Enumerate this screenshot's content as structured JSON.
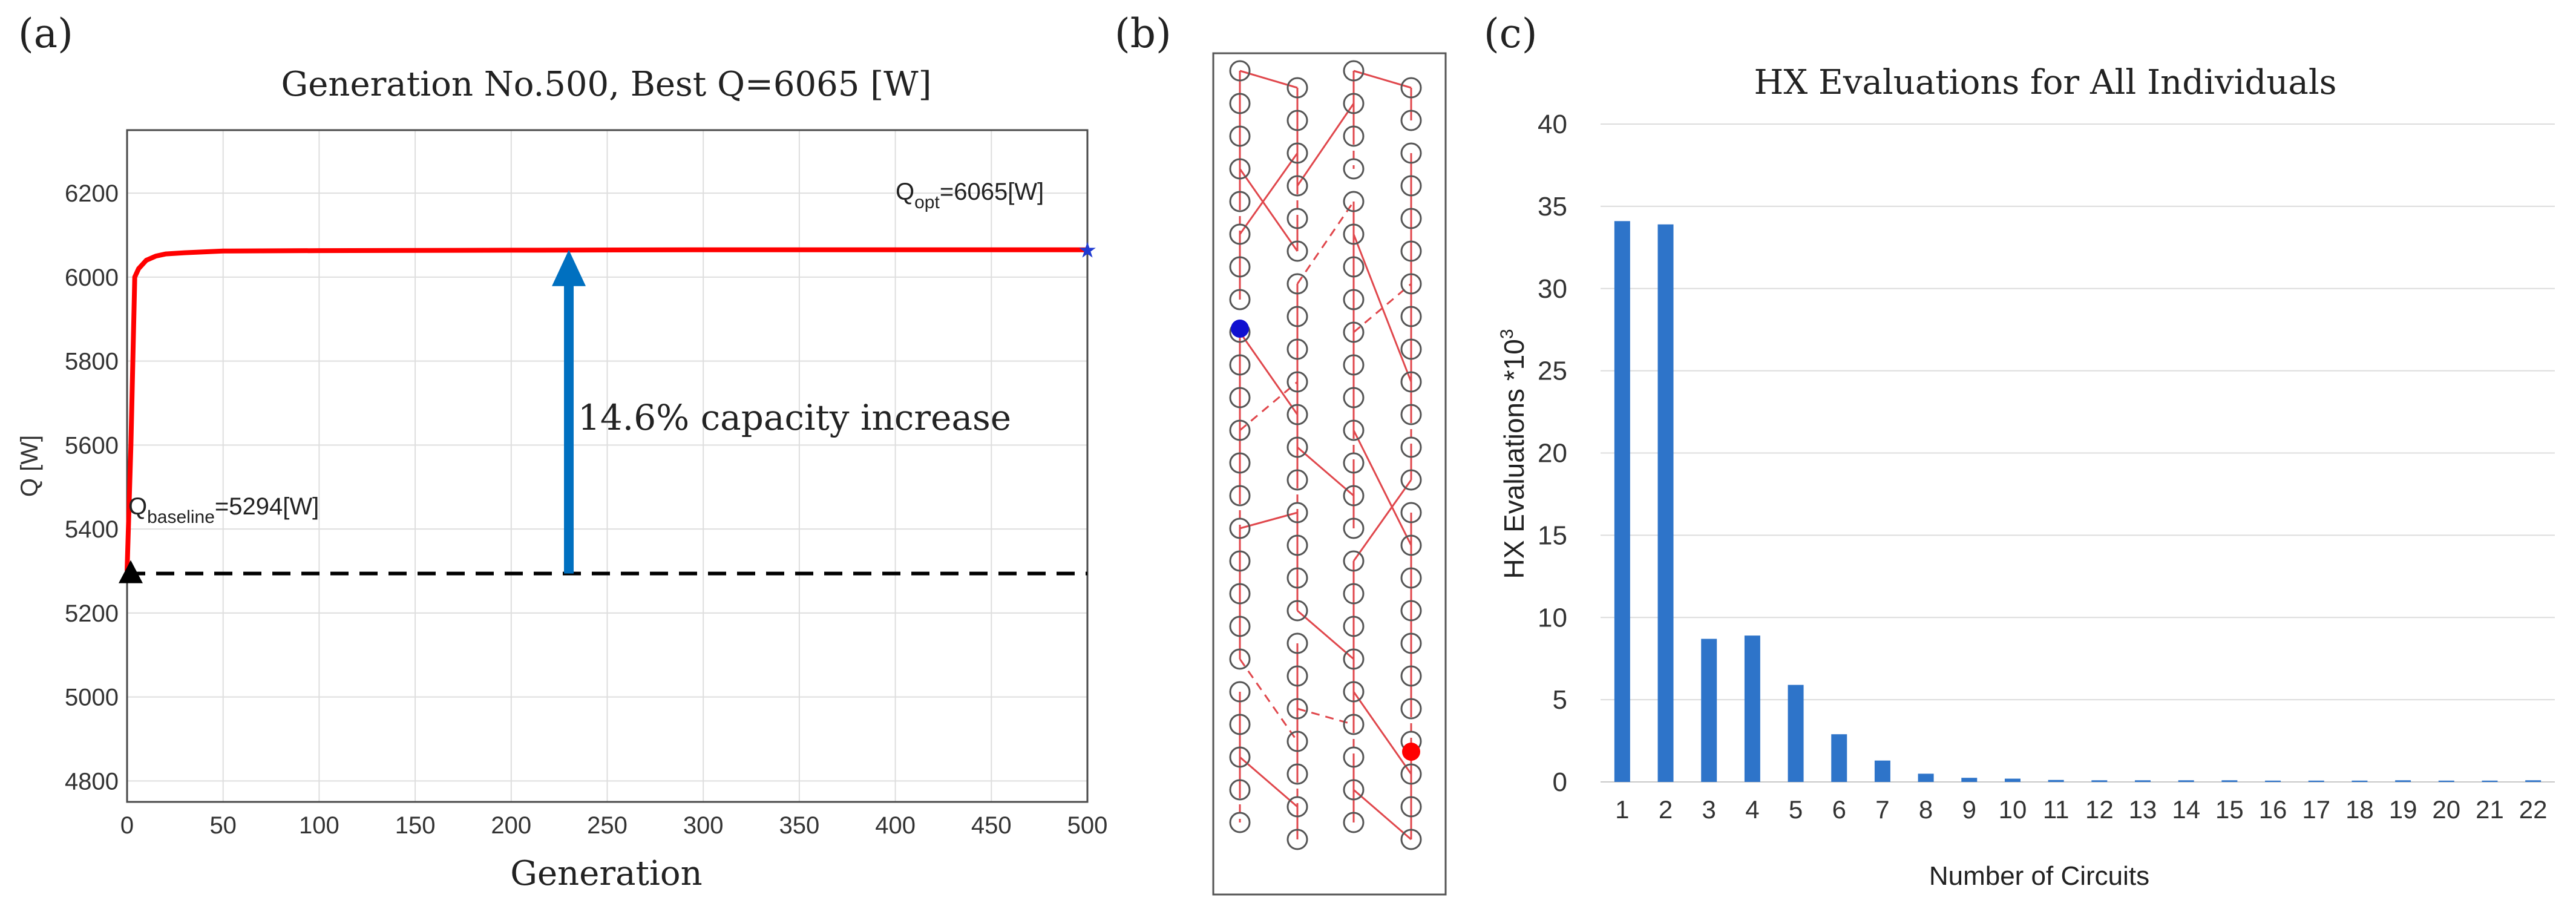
{
  "panels": {
    "a": {
      "label": "(a)"
    },
    "b": {
      "label": "(b)"
    },
    "c": {
      "label": "(c)"
    }
  },
  "chart_data": [
    {
      "id": "a",
      "type": "line",
      "title": "Generation No.500, Best Q=6065 [W]",
      "xlabel": "Generation",
      "ylabel": "Q [W]",
      "xlim": [
        0,
        500
      ],
      "ylim": [
        4750,
        6350
      ],
      "xticks": [
        0,
        50,
        100,
        150,
        200,
        250,
        300,
        350,
        400,
        450,
        500
      ],
      "yticks": [
        4800,
        5000,
        5200,
        5400,
        5600,
        5800,
        6000,
        6200
      ],
      "grid": true,
      "series": [
        {
          "name": "best Q",
          "color": "#ff0000",
          "x": [
            0,
            2,
            4,
            6,
            10,
            15,
            20,
            30,
            50,
            100,
            200,
            300,
            400,
            500
          ],
          "y": [
            5300,
            5600,
            6000,
            6020,
            6040,
            6050,
            6055,
            6058,
            6062,
            6063,
            6064,
            6065,
            6065,
            6065
          ]
        }
      ],
      "baseline": {
        "value": 5294,
        "color": "#000000"
      },
      "annotations": {
        "q_opt_pre": "Q",
        "q_opt_sub": "opt",
        "q_opt_post": "=6065[W]",
        "q_base_pre": "Q",
        "q_base_sub": "baseline",
        "q_base_post": "=5294[W]",
        "increase_text": "14.6% capacity increase",
        "arrow_at_generation": 230,
        "arrow_color": "#0070c0"
      }
    },
    {
      "id": "c",
      "type": "bar",
      "title": "HX Evaluations for All Individuals",
      "xlabel": "Number of Circuits",
      "ylabel_main": "HX Evaluations *10",
      "ylabel_sup": "3",
      "ylim": [
        0,
        40
      ],
      "yticks": [
        0,
        5,
        10,
        15,
        20,
        25,
        30,
        35,
        40
      ],
      "grid": true,
      "bar_color": "#2e74c9",
      "categories": [
        "1",
        "2",
        "3",
        "4",
        "5",
        "6",
        "7",
        "8",
        "9",
        "10",
        "11",
        "12",
        "13",
        "14",
        "15",
        "16",
        "17",
        "18",
        "19",
        "20",
        "21",
        "22"
      ],
      "values": [
        34.1,
        33.9,
        8.7,
        8.9,
        5.9,
        2.9,
        1.3,
        0.5,
        0.25,
        0.2,
        0.12,
        0.1,
        0.1,
        0.1,
        0.1,
        0.08,
        0.08,
        0.08,
        0.1,
        0.08,
        0.08,
        0.1
      ]
    }
  ],
  "circuit_diagram": {
    "rows": 24,
    "columns": 4,
    "circuit_color": "#e0474c",
    "inlet_color": "#1010d0",
    "outlet_color": "#ff0000"
  }
}
